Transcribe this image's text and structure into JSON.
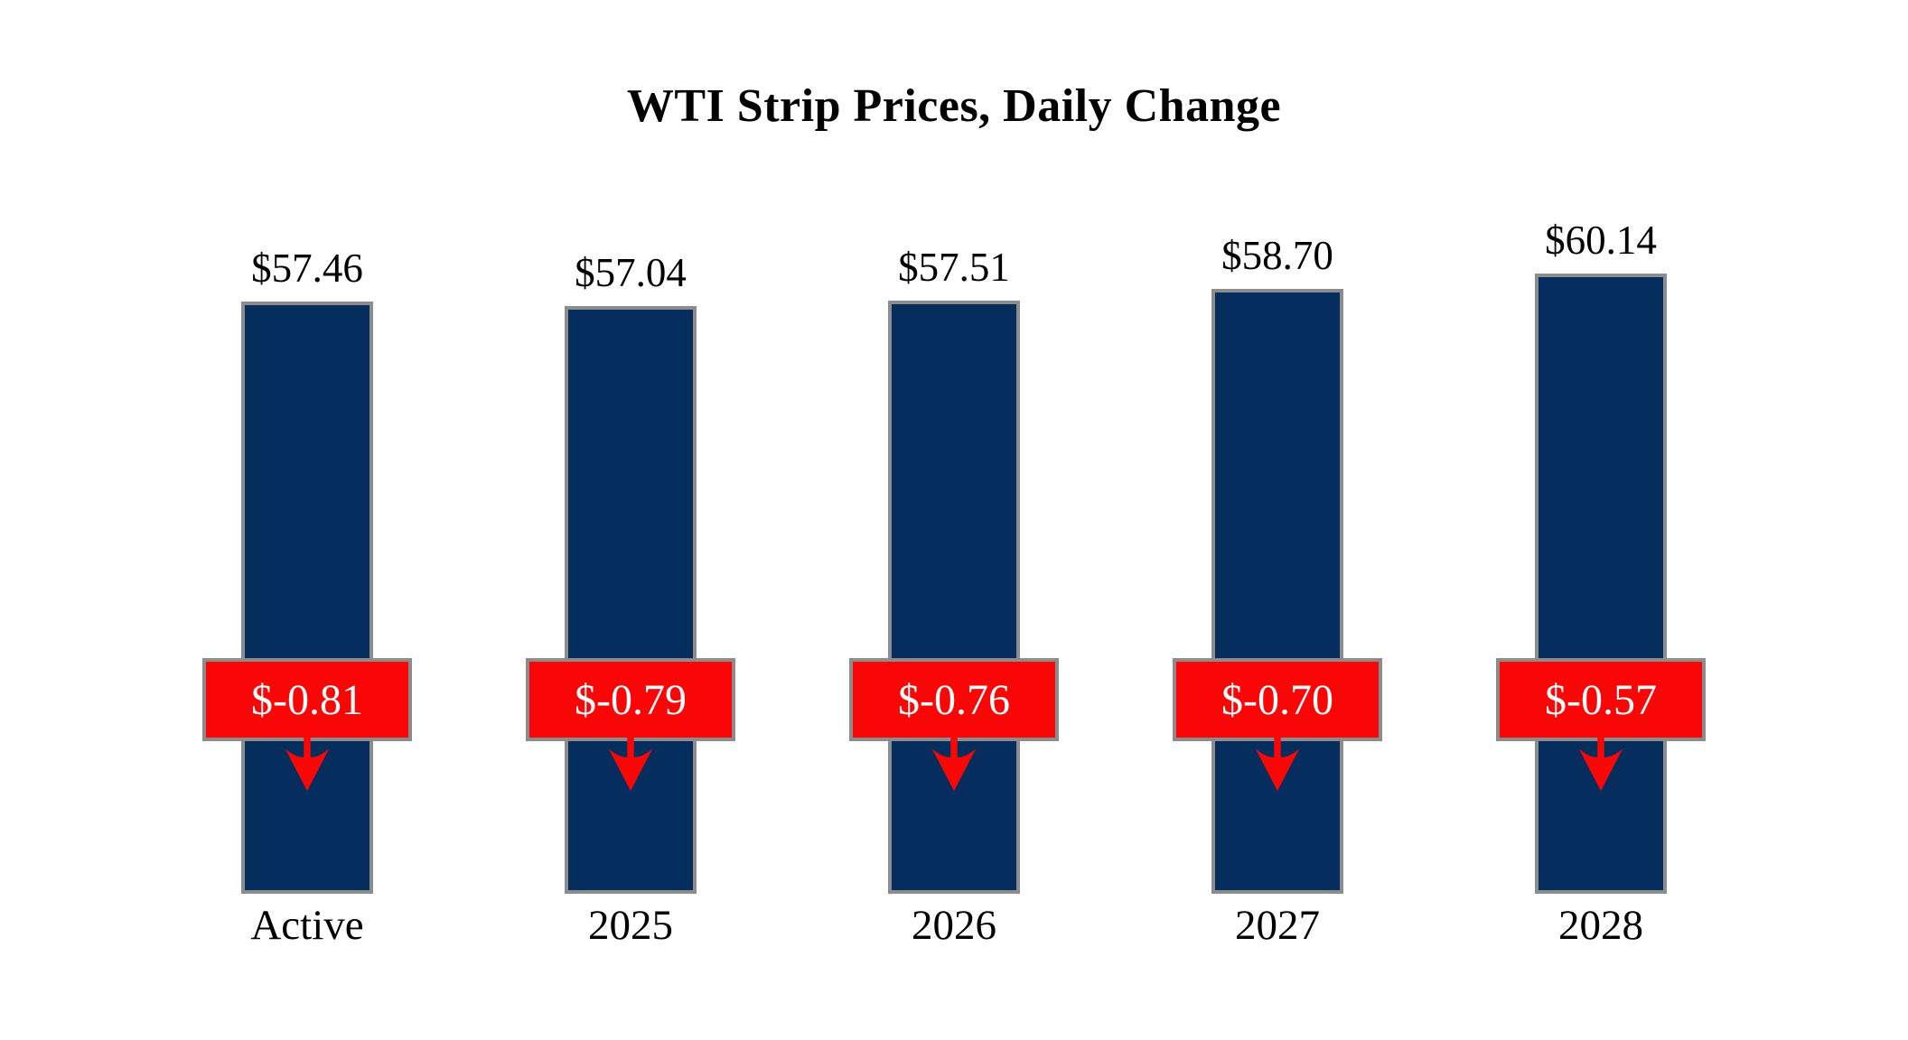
{
  "chart_data": {
    "type": "bar",
    "title": "WTI Strip Prices, Daily Change",
    "categories": [
      "Active",
      "2025",
      "2026",
      "2027",
      "2028"
    ],
    "series": [
      {
        "name": "Strip Price",
        "values": [
          57.46,
          57.04,
          57.51,
          58.7,
          60.14
        ]
      },
      {
        "name": "Daily Change",
        "values": [
          -0.81,
          -0.79,
          -0.76,
          -0.7,
          -0.57
        ]
      }
    ],
    "bar_labels": [
      "$57.46",
      "$57.04",
      "$57.51",
      "$58.70",
      "$60.14"
    ],
    "change_labels": [
      "$-0.81",
      "$-0.79",
      "$-0.76",
      "$-0.70",
      "$-0.57"
    ],
    "change_direction": "down",
    "xlabel": "",
    "ylabel": "",
    "ylim": [
      0,
      62
    ],
    "grid": false,
    "legend_position": "none",
    "colors": {
      "bar_fill": "#052e5e",
      "bar_border": "#8c8c8c",
      "change_box_fill": "#f90606",
      "change_box_border": "#8c8c8c",
      "change_text": "#ffffff",
      "arrow": "#f90606",
      "label_text": "#000000",
      "title_text": "#000000",
      "background": "#ffffff"
    }
  }
}
